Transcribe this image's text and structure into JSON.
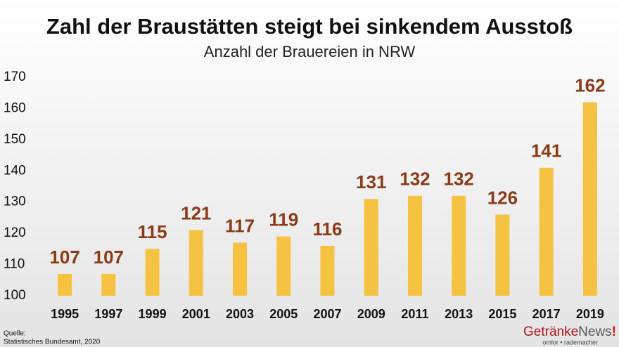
{
  "chart_data": {
    "type": "bar",
    "title": "Zahl der Braustätten steigt bei sinkendem Ausstoß",
    "subtitle": "Anzahl der Brauereien in NRW",
    "categories": [
      "1995",
      "1997",
      "1999",
      "2001",
      "2003",
      "2005",
      "2007",
      "2009",
      "2011",
      "2013",
      "2015",
      "2017",
      "2019"
    ],
    "values": [
      107,
      107,
      115,
      121,
      117,
      119,
      116,
      131,
      132,
      132,
      126,
      141,
      162
    ],
    "color": "#f5c242",
    "value_label_color": "#8b3a17",
    "ylim": [
      100,
      170
    ],
    "yticks": [
      100,
      110,
      120,
      130,
      140,
      150,
      160,
      170
    ],
    "grid": false
  },
  "source": {
    "label": "Quelle:",
    "text": "Statistisches Bundesamt, 2020"
  },
  "logo": {
    "name": "Getränke",
    "name2": "News",
    "mark": "!",
    "tagline": "omlor • rademacher"
  }
}
